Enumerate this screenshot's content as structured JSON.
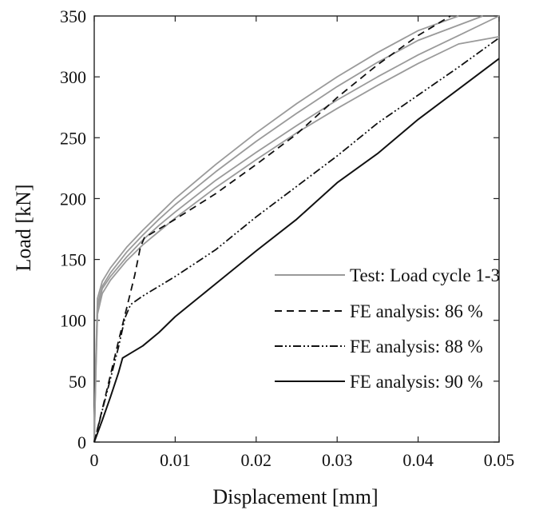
{
  "chart_data": {
    "type": "line",
    "title": "",
    "xlabel": "Displacement [mm]",
    "ylabel": "Load [kN]",
    "xlim": [
      0,
      0.05
    ],
    "ylim": [
      0,
      350
    ],
    "xticks": [
      0,
      0.01,
      0.02,
      0.03,
      0.04,
      0.05
    ],
    "xtick_labels": [
      "0",
      "0.01",
      "0.02",
      "0.03",
      "0.04",
      "0.05"
    ],
    "yticks": [
      0,
      50,
      100,
      150,
      200,
      250,
      300,
      350
    ],
    "ytick_labels": [
      "0",
      "50",
      "100",
      "150",
      "200",
      "250",
      "300",
      "350"
    ],
    "grid": false,
    "legend_position": "lower-right",
    "legend": [
      {
        "label": "Test: Load cycle 1-3",
        "color": "#9a9a9a",
        "style": "solid"
      },
      {
        "label": "FE analysis: 86 %",
        "color": "#111111",
        "style": "dashed"
      },
      {
        "label": "FE analysis: 88 %",
        "color": "#111111",
        "style": "dashdotdot"
      },
      {
        "label": "FE analysis: 90 %",
        "color": "#111111",
        "style": "solid"
      }
    ],
    "series": [
      {
        "legend_index": 0,
        "color": "#9a9a9a",
        "style": "solid",
        "points": [
          [
            0,
            0
          ],
          [
            0.0002,
            60
          ],
          [
            0.0004,
            110
          ],
          [
            0.001,
            126
          ],
          [
            0.002,
            136
          ],
          [
            0.004,
            152
          ],
          [
            0.006,
            166
          ],
          [
            0.008,
            178
          ],
          [
            0.01,
            189
          ],
          [
            0.015,
            215
          ],
          [
            0.02,
            238
          ],
          [
            0.025,
            260
          ],
          [
            0.03,
            281
          ],
          [
            0.035,
            300
          ],
          [
            0.04,
            318
          ],
          [
            0.045,
            334
          ],
          [
            0.05,
            350
          ]
        ]
      },
      {
        "legend_index": 0,
        "color": "#9a9a9a",
        "style": "solid",
        "points": [
          [
            0,
            0
          ],
          [
            0.0002,
            65
          ],
          [
            0.0004,
            113
          ],
          [
            0.001,
            128
          ],
          [
            0.002,
            139
          ],
          [
            0.004,
            156
          ],
          [
            0.006,
            170
          ],
          [
            0.008,
            183
          ],
          [
            0.01,
            195
          ],
          [
            0.015,
            222
          ],
          [
            0.02,
            247
          ],
          [
            0.025,
            270
          ],
          [
            0.03,
            292
          ],
          [
            0.035,
            312
          ],
          [
            0.04,
            330
          ],
          [
            0.048,
            350
          ]
        ]
      },
      {
        "legend_index": 0,
        "color": "#9a9a9a",
        "style": "solid",
        "points": [
          [
            0,
            0
          ],
          [
            0.0002,
            55
          ],
          [
            0.0004,
            105
          ],
          [
            0.001,
            122
          ],
          [
            0.002,
            133
          ],
          [
            0.004,
            149
          ],
          [
            0.006,
            162
          ],
          [
            0.008,
            173
          ],
          [
            0.01,
            184
          ],
          [
            0.015,
            209
          ],
          [
            0.02,
            232
          ],
          [
            0.025,
            254
          ],
          [
            0.03,
            274
          ],
          [
            0.035,
            293
          ],
          [
            0.04,
            311
          ],
          [
            0.045,
            327
          ],
          [
            0.05,
            333
          ]
        ]
      },
      {
        "legend_index": 0,
        "color": "#9a9a9a",
        "style": "solid",
        "points": [
          [
            0,
            0
          ],
          [
            0.0002,
            68
          ],
          [
            0.0004,
            118
          ],
          [
            0.001,
            132
          ],
          [
            0.002,
            143
          ],
          [
            0.004,
            160
          ],
          [
            0.006,
            174
          ],
          [
            0.008,
            187
          ],
          [
            0.01,
            200
          ],
          [
            0.015,
            228
          ],
          [
            0.02,
            254
          ],
          [
            0.025,
            278
          ],
          [
            0.03,
            300
          ],
          [
            0.035,
            320
          ],
          [
            0.04,
            338
          ],
          [
            0.045,
            350
          ]
        ]
      },
      {
        "legend_index": 1,
        "color": "#111111",
        "style": "dashed",
        "points": [
          [
            0,
            0
          ],
          [
            0.001,
            27
          ],
          [
            0.002,
            55
          ],
          [
            0.003,
            83
          ],
          [
            0.004,
            110
          ],
          [
            0.005,
            137
          ],
          [
            0.0057,
            160
          ],
          [
            0.0062,
            168
          ],
          [
            0.008,
            175
          ],
          [
            0.01,
            183
          ],
          [
            0.015,
            204
          ],
          [
            0.02,
            228
          ],
          [
            0.025,
            253
          ],
          [
            0.03,
            283
          ],
          [
            0.035,
            310
          ],
          [
            0.04,
            334
          ],
          [
            0.044,
            352
          ]
        ]
      },
      {
        "legend_index": 2,
        "color": "#111111",
        "style": "dashdotdot",
        "points": [
          [
            0,
            0
          ],
          [
            0.001,
            26
          ],
          [
            0.002,
            52
          ],
          [
            0.003,
            78
          ],
          [
            0.0038,
            102
          ],
          [
            0.0045,
            113
          ],
          [
            0.006,
            120
          ],
          [
            0.008,
            128
          ],
          [
            0.01,
            136
          ],
          [
            0.015,
            158
          ],
          [
            0.02,
            185
          ],
          [
            0.025,
            210
          ],
          [
            0.03,
            235
          ],
          [
            0.035,
            262
          ],
          [
            0.04,
            285
          ],
          [
            0.045,
            308
          ],
          [
            0.05,
            332
          ]
        ]
      },
      {
        "legend_index": 3,
        "color": "#111111",
        "style": "solid",
        "points": [
          [
            0,
            0
          ],
          [
            0.001,
            18
          ],
          [
            0.002,
            37
          ],
          [
            0.003,
            57
          ],
          [
            0.0035,
            69
          ],
          [
            0.0045,
            73
          ],
          [
            0.006,
            79
          ],
          [
            0.008,
            90
          ],
          [
            0.01,
            103
          ],
          [
            0.015,
            130
          ],
          [
            0.02,
            157
          ],
          [
            0.025,
            183
          ],
          [
            0.03,
            213
          ],
          [
            0.035,
            237
          ],
          [
            0.04,
            265
          ],
          [
            0.045,
            290
          ],
          [
            0.05,
            315
          ]
        ]
      }
    ]
  }
}
